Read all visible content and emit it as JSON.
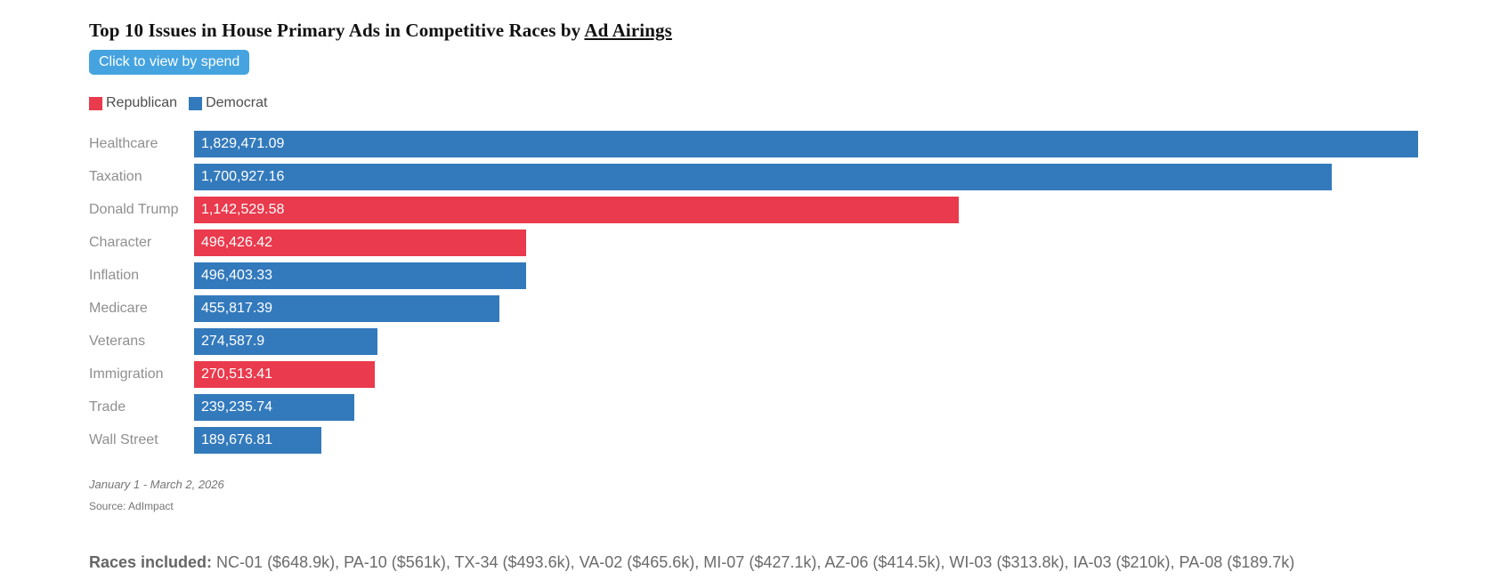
{
  "title": {
    "text_before": "Top 10 Issues in House Primary Ads in Competitive Races by ",
    "underlined": "Ad Airings"
  },
  "button": {
    "label": "Click to view by spend"
  },
  "legend": [
    {
      "label": "Republican",
      "party": "republican"
    },
    {
      "label": "Democrat",
      "party": "democrat"
    }
  ],
  "colors": {
    "republican": "#ea3a4d",
    "democrat": "#337abc",
    "button_bg": "#45a3e0",
    "bar_text": "#ffffff"
  },
  "chart_data": {
    "type": "bar",
    "orientation": "horizontal",
    "title": "Top 10 Issues in House Primary Ads in Competitive Races by Ad Airings",
    "legend_position": "top",
    "grid": false,
    "xlim": [
      0,
      1829471.09
    ],
    "categories": [
      "Healthcare",
      "Taxation",
      "Donald Trump",
      "Character",
      "Inflation",
      "Medicare",
      "Veterans",
      "Immigration",
      "Trade",
      "Wall Street"
    ],
    "values": [
      1829471.09,
      1700927.16,
      1142529.58,
      496426.42,
      496403.33,
      455817.39,
      274587.9,
      270513.41,
      239235.74,
      189676.81
    ],
    "value_labels": [
      "1,829,471.09",
      "1,700,927.16",
      "1,142,529.58",
      "496,426.42",
      "496,403.33",
      "455,817.39",
      "274,587.9",
      "270,513.41",
      "239,235.74",
      "189,676.81"
    ],
    "bar_parties": [
      "democrat",
      "democrat",
      "republican",
      "republican",
      "democrat",
      "democrat",
      "democrat",
      "republican",
      "democrat",
      "democrat"
    ]
  },
  "footnotes": {
    "date_range": "January 1 - March 2, 2026",
    "source": "Source: AdImpact"
  },
  "races": {
    "label": "Races included:",
    "text": " NC-01 ($648.9k), PA-10 ($561k), TX-34 ($493.6k), VA-02 ($465.6k), MI-07 ($427.1k), AZ-06 ($414.5k), WI-03 ($313.8k), IA-03 ($210k), PA-08 ($189.7k)"
  }
}
